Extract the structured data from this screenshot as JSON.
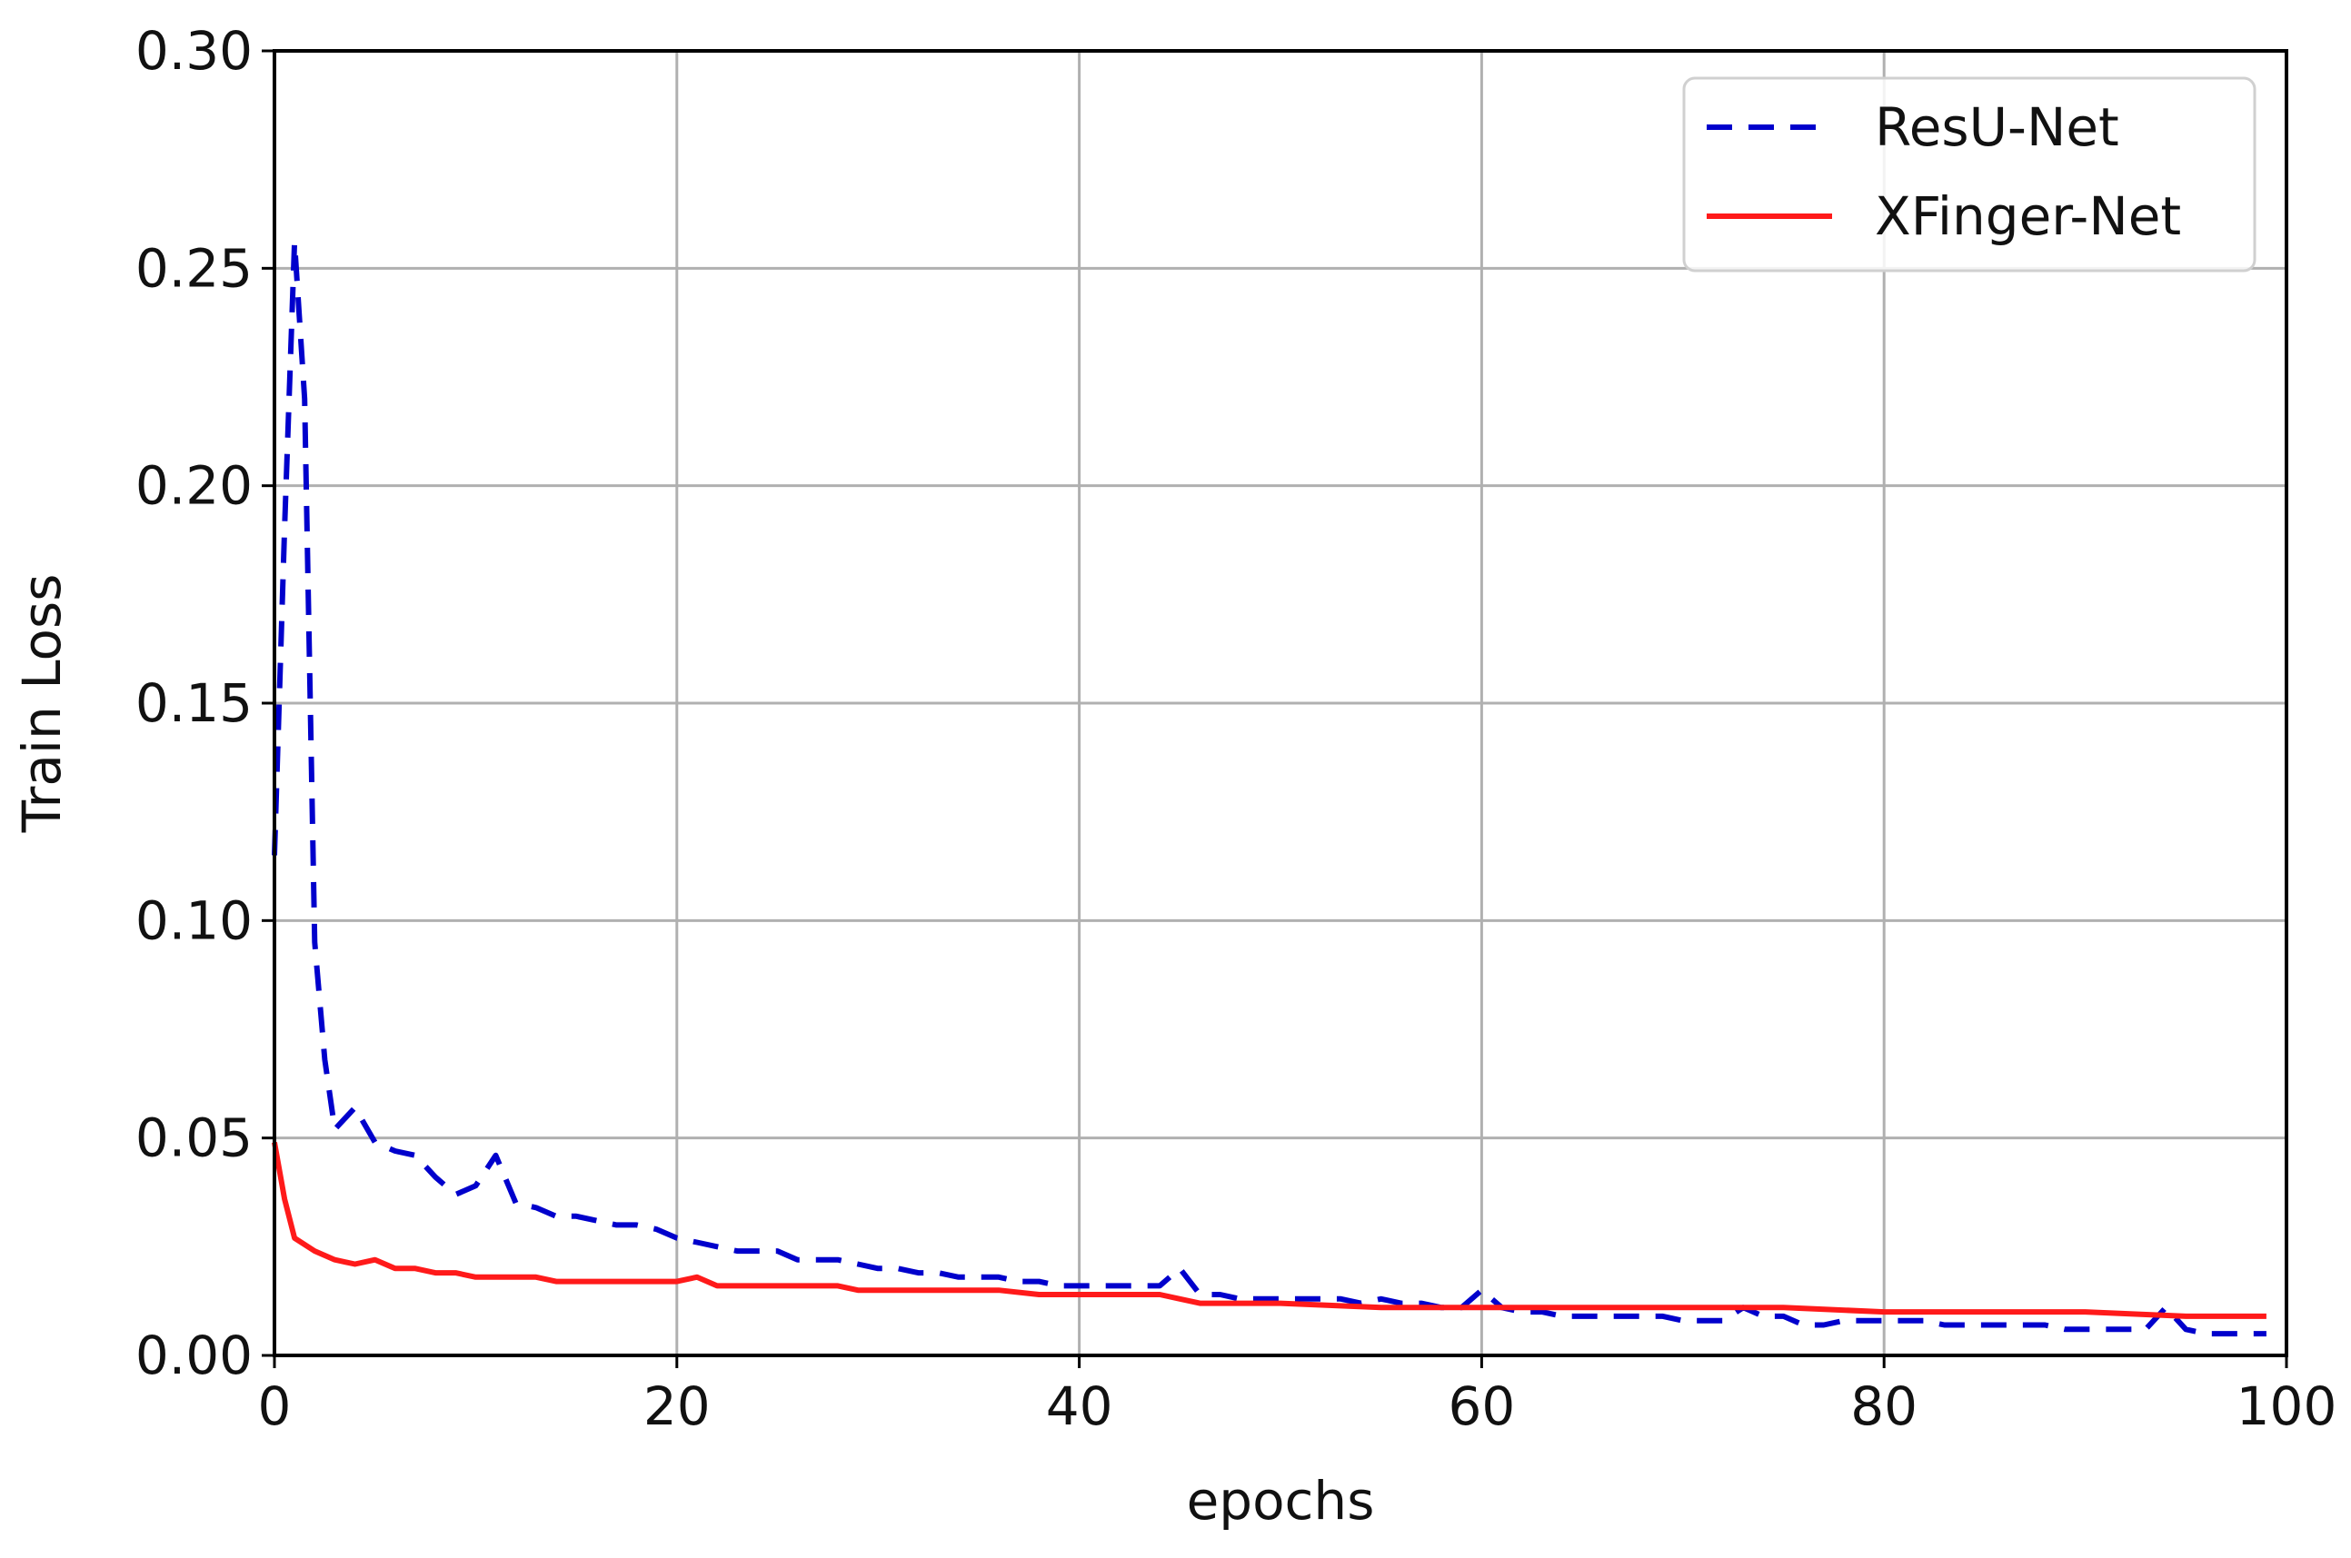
{
  "chart_data": {
    "type": "line",
    "title": "",
    "xlabel": "epochs",
    "ylabel": "Train Loss",
    "xlim": [
      0,
      100
    ],
    "ylim": [
      0,
      0.3
    ],
    "xticks": [
      "0",
      "20",
      "40",
      "60",
      "80",
      "100"
    ],
    "xtick_values": [
      0,
      20,
      40,
      60,
      80,
      100
    ],
    "yticks": [
      "0.00",
      "0.05",
      "0.10",
      "0.15",
      "0.20",
      "0.25",
      "0.30"
    ],
    "ytick_values": [
      0,
      0.05,
      0.1,
      0.15,
      0.2,
      0.25,
      0.3
    ],
    "grid": true,
    "legend_position": "top-right",
    "series": [
      {
        "name": "ResU-Net",
        "color": "#0000cc",
        "style": "dashed",
        "x": [
          0,
          0.5,
          1,
          1.5,
          2,
          2.5,
          3,
          4,
          5,
          6,
          7,
          8,
          9,
          10,
          11,
          12,
          13,
          14,
          15,
          16,
          17,
          18,
          19,
          20,
          21,
          22,
          23,
          24,
          25,
          26,
          27,
          28,
          29,
          30,
          31,
          32,
          33,
          34,
          35,
          36,
          37,
          38,
          39,
          40,
          41,
          42,
          43,
          44,
          45,
          46,
          47,
          48,
          49,
          50,
          51,
          52,
          53,
          54,
          55,
          56,
          57,
          58,
          59,
          60,
          61,
          62,
          63,
          64,
          65,
          66,
          67,
          68,
          69,
          70,
          71,
          72,
          73,
          74,
          75,
          76,
          77,
          78,
          79,
          80,
          81,
          82,
          83,
          84,
          85,
          86,
          87,
          88,
          89,
          90,
          91,
          92,
          93,
          94,
          95,
          96,
          97,
          98,
          99
        ],
        "values": [
          0.115,
          0.19,
          0.256,
          0.22,
          0.095,
          0.068,
          0.052,
          0.057,
          0.049,
          0.047,
          0.046,
          0.041,
          0.037,
          0.039,
          0.046,
          0.035,
          0.034,
          0.032,
          0.032,
          0.031,
          0.03,
          0.03,
          0.029,
          0.027,
          0.026,
          0.025,
          0.024,
          0.024,
          0.024,
          0.022,
          0.022,
          0.022,
          0.021,
          0.02,
          0.02,
          0.019,
          0.019,
          0.018,
          0.018,
          0.018,
          0.017,
          0.017,
          0.016,
          0.016,
          0.016,
          0.016,
          0.016,
          0.016,
          0.02,
          0.014,
          0.014,
          0.013,
          0.013,
          0.013,
          0.013,
          0.013,
          0.013,
          0.012,
          0.013,
          0.012,
          0.012,
          0.011,
          0.011,
          0.015,
          0.011,
          0.01,
          0.01,
          0.009,
          0.009,
          0.009,
          0.009,
          0.009,
          0.009,
          0.008,
          0.008,
          0.008,
          0.011,
          0.009,
          0.009,
          0.007,
          0.007,
          0.008,
          0.008,
          0.008,
          0.008,
          0.008,
          0.007,
          0.007,
          0.007,
          0.007,
          0.007,
          0.007,
          0.006,
          0.006,
          0.006,
          0.006,
          0.006,
          0.011,
          0.006,
          0.005,
          0.005,
          0.005,
          0.005
        ]
      },
      {
        "name": "XFinger-Net",
        "color": "#ff1a1a",
        "style": "solid",
        "x": [
          0,
          0.5,
          1,
          2,
          3,
          4,
          5,
          6,
          7,
          8,
          9,
          10,
          11,
          12,
          13,
          14,
          15,
          16,
          17,
          18,
          19,
          20,
          21,
          22,
          23,
          24,
          25,
          26,
          27,
          28,
          29,
          30,
          32,
          34,
          36,
          38,
          40,
          42,
          44,
          45,
          46,
          48,
          50,
          55,
          60,
          65,
          70,
          75,
          80,
          85,
          90,
          95,
          99
        ],
        "values": [
          0.049,
          0.036,
          0.027,
          0.024,
          0.022,
          0.021,
          0.022,
          0.02,
          0.02,
          0.019,
          0.019,
          0.018,
          0.018,
          0.018,
          0.018,
          0.017,
          0.017,
          0.017,
          0.017,
          0.017,
          0.017,
          0.017,
          0.018,
          0.016,
          0.016,
          0.016,
          0.016,
          0.016,
          0.016,
          0.016,
          0.015,
          0.015,
          0.015,
          0.015,
          0.015,
          0.014,
          0.014,
          0.014,
          0.014,
          0.013,
          0.012,
          0.012,
          0.012,
          0.011,
          0.011,
          0.011,
          0.011,
          0.011,
          0.01,
          0.01,
          0.01,
          0.009,
          0.009
        ]
      }
    ]
  }
}
